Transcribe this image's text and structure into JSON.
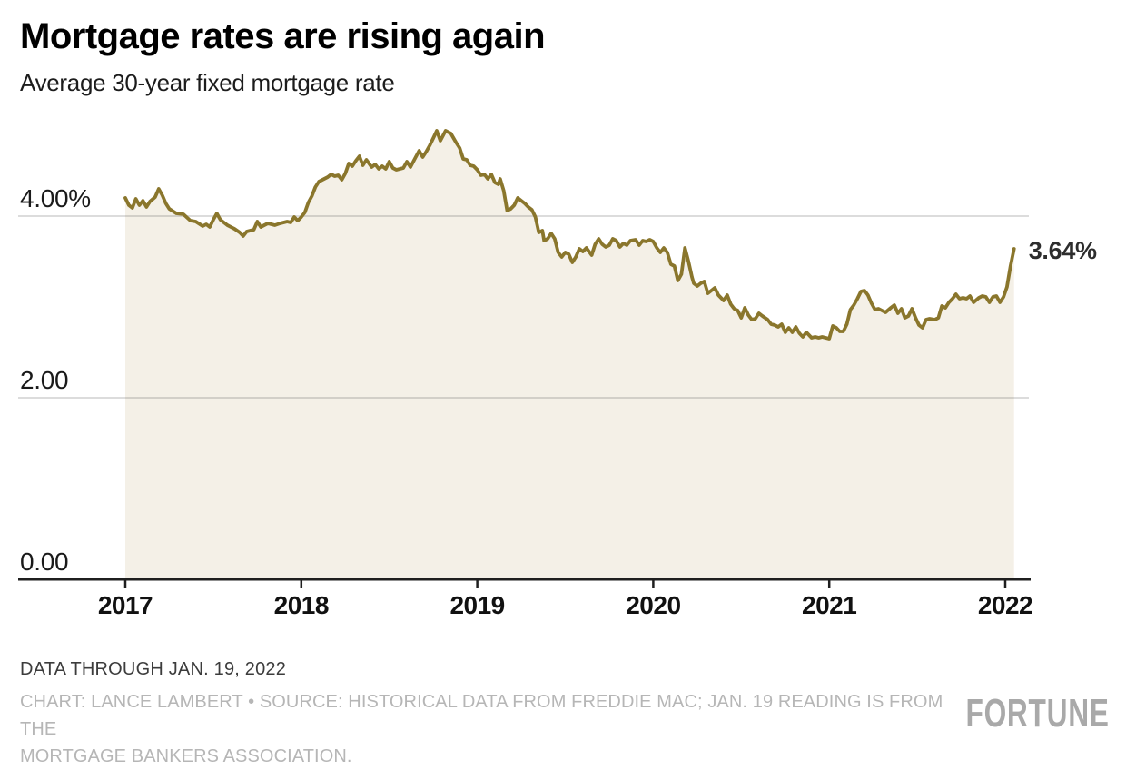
{
  "header": {
    "title": "Mortgage rates are rising again",
    "subtitle": "Average 30-year fixed mortgage rate"
  },
  "footer": {
    "note": "DATA THROUGH JAN. 19, 2022",
    "credit_line1": "CHART: LANCE LAMBERT • SOURCE: HISTORICAL DATA FROM FREDDIE MAC; JAN. 19 READING IS FROM THE",
    "credit_line2": "MORTGAGE BANKERS ASSOCIATION.",
    "brand": "FORTUNE"
  },
  "chart_data": {
    "type": "area",
    "title": "Average 30-year fixed mortgage rate",
    "xlabel": "",
    "ylabel": "Average 30-year fixed mortgage rate (%)",
    "xlim": [
      2017.0,
      2022.15
    ],
    "ylim": [
      0,
      5.2
    ],
    "grid": true,
    "legend": false,
    "x_ticks": [
      2017,
      2018,
      2019,
      2020,
      2021,
      2022
    ],
    "y_ticks": [
      {
        "value": 4,
        "label": "4.00%"
      },
      {
        "value": 2,
        "label": "2.00"
      },
      {
        "value": 0,
        "label": "0.00"
      }
    ],
    "end_label": "3.64%",
    "last_value": 3.64,
    "colors": {
      "line": "#8a762c",
      "fill": "#f4f0e7",
      "grid": "rgba(40,40,40,0.16)",
      "axis": "#1f1f1f"
    },
    "series": [
      {
        "name": "30-year fixed mortgage rate",
        "points": [
          [
            2017.0,
            4.2
          ],
          [
            2017.02,
            4.12
          ],
          [
            2017.04,
            4.09
          ],
          [
            2017.06,
            4.19
          ],
          [
            2017.08,
            4.12
          ],
          [
            2017.1,
            4.17
          ],
          [
            2017.12,
            4.1
          ],
          [
            2017.14,
            4.16
          ],
          [
            2017.17,
            4.21
          ],
          [
            2017.19,
            4.3
          ],
          [
            2017.21,
            4.23
          ],
          [
            2017.23,
            4.14
          ],
          [
            2017.25,
            4.08
          ],
          [
            2017.29,
            4.03
          ],
          [
            2017.33,
            4.02
          ],
          [
            2017.37,
            3.95
          ],
          [
            2017.4,
            3.94
          ],
          [
            2017.44,
            3.89
          ],
          [
            2017.46,
            3.91
          ],
          [
            2017.48,
            3.88
          ],
          [
            2017.5,
            3.96
          ],
          [
            2017.52,
            4.03
          ],
          [
            2017.54,
            3.96
          ],
          [
            2017.58,
            3.9
          ],
          [
            2017.62,
            3.86
          ],
          [
            2017.65,
            3.82
          ],
          [
            2017.67,
            3.78
          ],
          [
            2017.69,
            3.83
          ],
          [
            2017.73,
            3.85
          ],
          [
            2017.75,
            3.94
          ],
          [
            2017.77,
            3.88
          ],
          [
            2017.81,
            3.92
          ],
          [
            2017.85,
            3.9
          ],
          [
            2017.88,
            3.92
          ],
          [
            2017.92,
            3.94
          ],
          [
            2017.94,
            3.93
          ],
          [
            2017.96,
            3.99
          ],
          [
            2017.98,
            3.95
          ],
          [
            2018.0,
            3.99
          ],
          [
            2018.02,
            4.04
          ],
          [
            2018.04,
            4.15
          ],
          [
            2018.06,
            4.22
          ],
          [
            2018.08,
            4.32
          ],
          [
            2018.1,
            4.38
          ],
          [
            2018.12,
            4.4
          ],
          [
            2018.15,
            4.43
          ],
          [
            2018.17,
            4.46
          ],
          [
            2018.19,
            4.44
          ],
          [
            2018.21,
            4.45
          ],
          [
            2018.23,
            4.4
          ],
          [
            2018.25,
            4.47
          ],
          [
            2018.27,
            4.58
          ],
          [
            2018.29,
            4.55
          ],
          [
            2018.31,
            4.61
          ],
          [
            2018.33,
            4.66
          ],
          [
            2018.35,
            4.56
          ],
          [
            2018.37,
            4.62
          ],
          [
            2018.4,
            4.54
          ],
          [
            2018.42,
            4.57
          ],
          [
            2018.44,
            4.52
          ],
          [
            2018.46,
            4.55
          ],
          [
            2018.48,
            4.52
          ],
          [
            2018.5,
            4.6
          ],
          [
            2018.52,
            4.53
          ],
          [
            2018.54,
            4.51
          ],
          [
            2018.58,
            4.53
          ],
          [
            2018.6,
            4.6
          ],
          [
            2018.62,
            4.54
          ],
          [
            2018.65,
            4.65
          ],
          [
            2018.67,
            4.72
          ],
          [
            2018.69,
            4.65
          ],
          [
            2018.71,
            4.71
          ],
          [
            2018.73,
            4.78
          ],
          [
            2018.75,
            4.86
          ],
          [
            2018.77,
            4.94
          ],
          [
            2018.79,
            4.83
          ],
          [
            2018.82,
            4.94
          ],
          [
            2018.85,
            4.91
          ],
          [
            2018.88,
            4.81
          ],
          [
            2018.9,
            4.75
          ],
          [
            2018.92,
            4.63
          ],
          [
            2018.94,
            4.62
          ],
          [
            2018.96,
            4.56
          ],
          [
            2018.98,
            4.55
          ],
          [
            2019.0,
            4.51
          ],
          [
            2019.02,
            4.45
          ],
          [
            2019.04,
            4.46
          ],
          [
            2019.06,
            4.41
          ],
          [
            2019.08,
            4.46
          ],
          [
            2019.1,
            4.37
          ],
          [
            2019.12,
            4.35
          ],
          [
            2019.13,
            4.41
          ],
          [
            2019.15,
            4.28
          ],
          [
            2019.17,
            4.06
          ],
          [
            2019.19,
            4.08
          ],
          [
            2019.21,
            4.12
          ],
          [
            2019.23,
            4.2
          ],
          [
            2019.25,
            4.17
          ],
          [
            2019.27,
            4.14
          ],
          [
            2019.29,
            4.1
          ],
          [
            2019.31,
            4.07
          ],
          [
            2019.33,
            3.99
          ],
          [
            2019.35,
            3.82
          ],
          [
            2019.37,
            3.84
          ],
          [
            2019.38,
            3.73
          ],
          [
            2019.4,
            3.75
          ],
          [
            2019.42,
            3.81
          ],
          [
            2019.44,
            3.75
          ],
          [
            2019.46,
            3.6
          ],
          [
            2019.48,
            3.55
          ],
          [
            2019.5,
            3.6
          ],
          [
            2019.52,
            3.58
          ],
          [
            2019.54,
            3.49
          ],
          [
            2019.56,
            3.55
          ],
          [
            2019.58,
            3.64
          ],
          [
            2019.6,
            3.61
          ],
          [
            2019.62,
            3.65
          ],
          [
            2019.65,
            3.57
          ],
          [
            2019.67,
            3.69
          ],
          [
            2019.69,
            3.75
          ],
          [
            2019.71,
            3.69
          ],
          [
            2019.73,
            3.66
          ],
          [
            2019.75,
            3.68
          ],
          [
            2019.77,
            3.75
          ],
          [
            2019.79,
            3.73
          ],
          [
            2019.81,
            3.66
          ],
          [
            2019.83,
            3.7
          ],
          [
            2019.85,
            3.68
          ],
          [
            2019.87,
            3.73
          ],
          [
            2019.9,
            3.74
          ],
          [
            2019.92,
            3.68
          ],
          [
            2019.94,
            3.73
          ],
          [
            2019.96,
            3.72
          ],
          [
            2019.98,
            3.74
          ],
          [
            2020.0,
            3.72
          ],
          [
            2020.02,
            3.65
          ],
          [
            2020.04,
            3.6
          ],
          [
            2020.06,
            3.65
          ],
          [
            2020.08,
            3.6
          ],
          [
            2020.1,
            3.47
          ],
          [
            2020.12,
            3.45
          ],
          [
            2020.14,
            3.29
          ],
          [
            2020.16,
            3.36
          ],
          [
            2020.18,
            3.65
          ],
          [
            2020.2,
            3.5
          ],
          [
            2020.22,
            3.33
          ],
          [
            2020.23,
            3.26
          ],
          [
            2020.25,
            3.23
          ],
          [
            2020.27,
            3.26
          ],
          [
            2020.29,
            3.28
          ],
          [
            2020.31,
            3.15
          ],
          [
            2020.33,
            3.18
          ],
          [
            2020.35,
            3.21
          ],
          [
            2020.37,
            3.13
          ],
          [
            2020.4,
            3.07
          ],
          [
            2020.42,
            3.13
          ],
          [
            2020.44,
            3.03
          ],
          [
            2020.46,
            2.98
          ],
          [
            2020.48,
            2.96
          ],
          [
            2020.5,
            2.88
          ],
          [
            2020.52,
            2.99
          ],
          [
            2020.54,
            2.91
          ],
          [
            2020.56,
            2.86
          ],
          [
            2020.58,
            2.87
          ],
          [
            2020.6,
            2.93
          ],
          [
            2020.62,
            2.9
          ],
          [
            2020.65,
            2.86
          ],
          [
            2020.67,
            2.81
          ],
          [
            2020.69,
            2.8
          ],
          [
            2020.71,
            2.78
          ],
          [
            2020.73,
            2.81
          ],
          [
            2020.75,
            2.72
          ],
          [
            2020.77,
            2.77
          ],
          [
            2020.79,
            2.72
          ],
          [
            2020.81,
            2.78
          ],
          [
            2020.83,
            2.71
          ],
          [
            2020.85,
            2.67
          ],
          [
            2020.87,
            2.72
          ],
          [
            2020.9,
            2.66
          ],
          [
            2020.92,
            2.67
          ],
          [
            2020.94,
            2.66
          ],
          [
            2020.96,
            2.67
          ],
          [
            2020.98,
            2.66
          ],
          [
            2021.0,
            2.65
          ],
          [
            2021.02,
            2.79
          ],
          [
            2021.04,
            2.77
          ],
          [
            2021.06,
            2.73
          ],
          [
            2021.08,
            2.73
          ],
          [
            2021.1,
            2.81
          ],
          [
            2021.12,
            2.97
          ],
          [
            2021.14,
            3.02
          ],
          [
            2021.16,
            3.09
          ],
          [
            2021.18,
            3.17
          ],
          [
            2021.2,
            3.18
          ],
          [
            2021.22,
            3.13
          ],
          [
            2021.24,
            3.04
          ],
          [
            2021.26,
            2.97
          ],
          [
            2021.28,
            2.98
          ],
          [
            2021.3,
            2.96
          ],
          [
            2021.32,
            2.94
          ],
          [
            2021.35,
            2.99
          ],
          [
            2021.37,
            3.02
          ],
          [
            2021.39,
            2.93
          ],
          [
            2021.41,
            2.98
          ],
          [
            2021.43,
            2.88
          ],
          [
            2021.45,
            2.9
          ],
          [
            2021.47,
            2.98
          ],
          [
            2021.49,
            2.88
          ],
          [
            2021.51,
            2.8
          ],
          [
            2021.53,
            2.77
          ],
          [
            2021.55,
            2.86
          ],
          [
            2021.57,
            2.87
          ],
          [
            2021.6,
            2.86
          ],
          [
            2021.62,
            2.88
          ],
          [
            2021.64,
            3.01
          ],
          [
            2021.66,
            2.99
          ],
          [
            2021.68,
            3.05
          ],
          [
            2021.7,
            3.09
          ],
          [
            2021.72,
            3.14
          ],
          [
            2021.74,
            3.09
          ],
          [
            2021.76,
            3.1
          ],
          [
            2021.78,
            3.09
          ],
          [
            2021.8,
            3.12
          ],
          [
            2021.82,
            3.05
          ],
          [
            2021.85,
            3.1
          ],
          [
            2021.87,
            3.12
          ],
          [
            2021.89,
            3.11
          ],
          [
            2021.91,
            3.05
          ],
          [
            2021.93,
            3.11
          ],
          [
            2021.95,
            3.12
          ],
          [
            2021.97,
            3.05
          ],
          [
            2021.99,
            3.11
          ],
          [
            2022.01,
            3.22
          ],
          [
            2022.03,
            3.45
          ],
          [
            2022.05,
            3.64
          ]
        ]
      }
    ]
  }
}
